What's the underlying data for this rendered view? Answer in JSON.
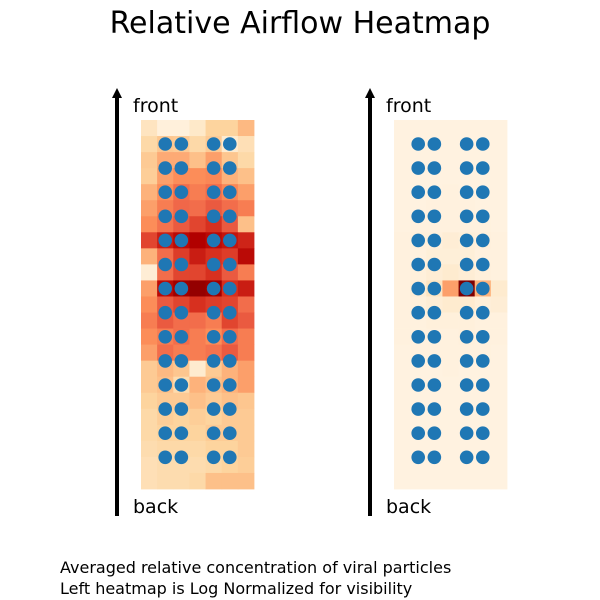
{
  "chart_data": {
    "type": "heatmap",
    "title": "Relative Airflow Heatmap",
    "caption": [
      "Averaged relative concentration of viral particles",
      "Left heatmap is Log Normalized for visibility"
    ],
    "panels": [
      {
        "top_label": "front",
        "bottom_label": "back",
        "colormap": "OrRd",
        "normalization": "log",
        "seat_rows": 14,
        "seat_columns": [
          1,
          2,
          4,
          5
        ],
        "grid": [
          [
            0.15,
            0.06,
            0.06,
            0.12,
            0.25,
            0.25,
            0.38
          ],
          [
            0.22,
            0.32,
            0.3,
            0.22,
            0.3,
            0.1,
            0.18
          ],
          [
            0.3,
            0.42,
            0.42,
            0.35,
            0.45,
            0.32,
            0.22
          ],
          [
            0.28,
            0.45,
            0.5,
            0.5,
            0.52,
            0.4,
            0.35
          ],
          [
            0.4,
            0.5,
            0.6,
            0.55,
            0.6,
            0.52,
            0.45
          ],
          [
            0.45,
            0.55,
            0.62,
            0.6,
            0.65,
            0.6,
            0.55
          ],
          [
            0.5,
            0.58,
            0.65,
            0.7,
            0.75,
            0.65,
            0.35
          ],
          [
            0.7,
            0.8,
            0.85,
            0.88,
            0.85,
            0.82,
            0.78
          ],
          [
            0.4,
            0.6,
            0.72,
            0.8,
            0.75,
            0.72,
            0.85
          ],
          [
            0.08,
            0.6,
            0.7,
            0.7,
            0.75,
            0.65,
            0.55
          ],
          [
            0.45,
            0.85,
            0.92,
            0.95,
            0.92,
            0.75,
            0.8
          ],
          [
            0.5,
            0.65,
            0.7,
            0.75,
            0.72,
            0.7,
            0.6
          ],
          [
            0.55,
            0.65,
            0.6,
            0.6,
            0.55,
            0.7,
            0.65
          ],
          [
            0.5,
            0.55,
            0.6,
            0.55,
            0.5,
            0.6,
            0.55
          ],
          [
            0.45,
            0.6,
            0.55,
            0.55,
            0.58,
            0.65,
            0.55
          ],
          [
            0.3,
            0.38,
            0.32,
            0.1,
            0.3,
            0.4,
            0.45
          ],
          [
            0.3,
            0.35,
            0.2,
            0.4,
            0.35,
            0.4,
            0.45
          ],
          [
            0.25,
            0.3,
            0.3,
            0.35,
            0.3,
            0.35,
            0.32
          ],
          [
            0.22,
            0.28,
            0.25,
            0.28,
            0.25,
            0.3,
            0.3
          ],
          [
            0.22,
            0.25,
            0.25,
            0.25,
            0.3,
            0.3,
            0.3
          ],
          [
            0.2,
            0.22,
            0.22,
            0.22,
            0.25,
            0.25,
            0.3
          ],
          [
            0.18,
            0.2,
            0.2,
            0.2,
            0.22,
            0.25,
            0.28
          ],
          [
            0.18,
            0.2,
            0.2,
            0.22,
            0.35,
            0.35,
            0.35
          ]
        ]
      },
      {
        "top_label": "front",
        "bottom_label": "back",
        "colormap": "OrRd",
        "normalization": "linear",
        "seat_rows": 14,
        "seat_columns": [
          1,
          2,
          4,
          5
        ],
        "grid": [
          [
            0.04,
            0.04,
            0.04,
            0.04,
            0.04,
            0.04,
            0.04
          ],
          [
            0.04,
            0.04,
            0.04,
            0.04,
            0.04,
            0.04,
            0.04
          ],
          [
            0.04,
            0.04,
            0.04,
            0.04,
            0.04,
            0.04,
            0.04
          ],
          [
            0.04,
            0.04,
            0.04,
            0.04,
            0.04,
            0.04,
            0.04
          ],
          [
            0.04,
            0.04,
            0.04,
            0.05,
            0.04,
            0.04,
            0.04
          ],
          [
            0.04,
            0.04,
            0.05,
            0.05,
            0.05,
            0.04,
            0.04
          ],
          [
            0.04,
            0.05,
            0.05,
            0.05,
            0.05,
            0.05,
            0.04
          ],
          [
            0.05,
            0.06,
            0.06,
            0.08,
            0.07,
            0.06,
            0.05
          ],
          [
            0.05,
            0.05,
            0.07,
            0.07,
            0.07,
            0.05,
            0.05
          ],
          [
            0.05,
            0.06,
            0.08,
            0.1,
            0.08,
            0.06,
            0.05
          ],
          [
            0.05,
            0.08,
            0.15,
            0.45,
            1.0,
            0.4,
            0.1
          ],
          [
            0.05,
            0.06,
            0.08,
            0.1,
            0.1,
            0.07,
            0.08
          ],
          [
            0.05,
            0.05,
            0.06,
            0.06,
            0.06,
            0.05,
            0.05
          ],
          [
            0.05,
            0.05,
            0.05,
            0.05,
            0.06,
            0.05,
            0.05
          ],
          [
            0.04,
            0.05,
            0.05,
            0.05,
            0.05,
            0.05,
            0.04
          ],
          [
            0.04,
            0.04,
            0.04,
            0.05,
            0.04,
            0.04,
            0.04
          ],
          [
            0.04,
            0.04,
            0.04,
            0.04,
            0.04,
            0.04,
            0.04
          ],
          [
            0.04,
            0.04,
            0.04,
            0.04,
            0.04,
            0.04,
            0.04
          ],
          [
            0.04,
            0.04,
            0.04,
            0.04,
            0.04,
            0.04,
            0.04
          ],
          [
            0.04,
            0.04,
            0.04,
            0.04,
            0.04,
            0.04,
            0.04
          ],
          [
            0.04,
            0.04,
            0.04,
            0.04,
            0.04,
            0.04,
            0.04
          ],
          [
            0.04,
            0.04,
            0.04,
            0.04,
            0.04,
            0.04,
            0.04
          ],
          [
            0.04,
            0.04,
            0.04,
            0.04,
            0.04,
            0.04,
            0.04
          ]
        ]
      }
    ],
    "colors": {
      "seat": "#1f77b4",
      "axis_arrow": "#000000"
    }
  }
}
